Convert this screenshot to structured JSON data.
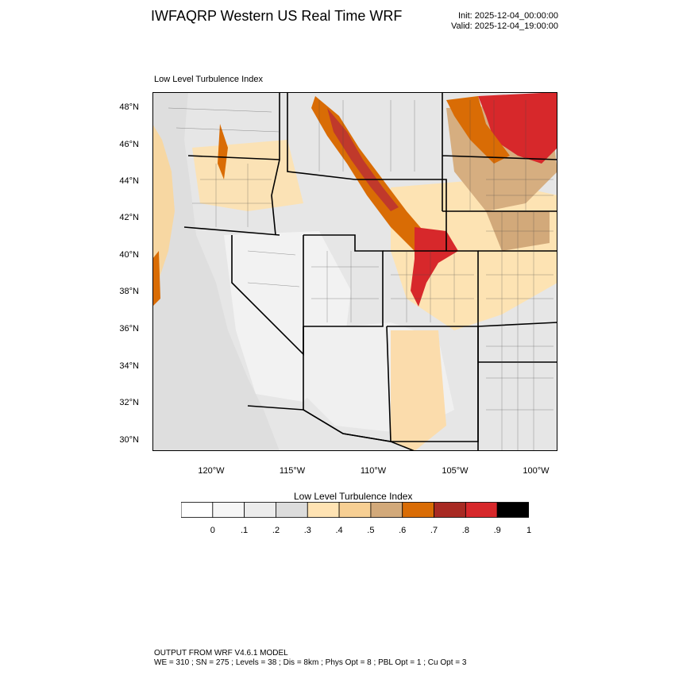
{
  "header": {
    "title": "IWFAQRP Western US Real Time WRF",
    "init": "Init: 2025-12-04_00:00:00",
    "valid": "Valid: 2025-12-04_19:00:00"
  },
  "plot": {
    "label": "Low Level Turbulence Index",
    "lat_labels": [
      "48°N",
      "46°N",
      "44°N",
      "42°N",
      "40°N",
      "38°N",
      "36°N",
      "34°N",
      "32°N",
      "30°N"
    ],
    "lon_labels": [
      "120°W",
      "115°W",
      "110°W",
      "105°W",
      "100°W"
    ]
  },
  "colorbar": {
    "title": "Low Level Turbulence Index",
    "tick_labels": [
      "0",
      ".1",
      ".2",
      ".3",
      ".4",
      ".5",
      ".6",
      ".7",
      ".8",
      ".9",
      "1"
    ],
    "colors": [
      "#ffffff",
      "#f6f6f6",
      "#ececec",
      "#dcdcdc",
      "#ffe3b3",
      "#f7cf93",
      "#d2a97a",
      "#d96c05",
      "#a82a23",
      "#d7282b",
      "#000000"
    ]
  },
  "footer": {
    "line1": "OUTPUT FROM WRF V4.6.1 MODEL",
    "line2": "WE = 310 ; SN = 275 ; Levels = 38 ; Dis = 8km ; Phys Opt = 8 ; PBL Opt = 1 ; Cu Opt = 3"
  }
}
